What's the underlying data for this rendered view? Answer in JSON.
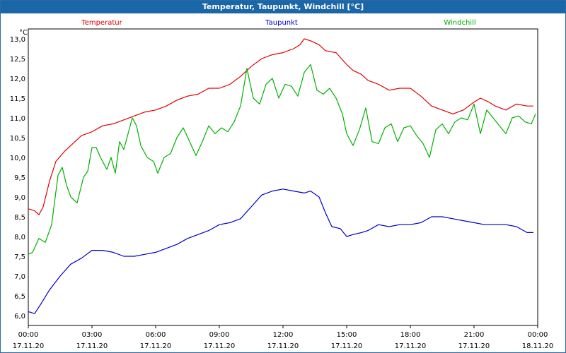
{
  "window": {
    "title": "Temperatur, Taupunkt, Windchill [°C]"
  },
  "colors": {
    "titlebar": "#1b66a6",
    "grid": "#000000",
    "temperature": "#e00000",
    "dewpoint": "#0000cc",
    "windchill": "#00b000"
  },
  "chart_data": {
    "type": "line",
    "title": "Temperatur, Taupunkt, Windchill [°C]",
    "ylabel": "°C",
    "xlabel": "",
    "ylim": [
      5.75,
      13.25
    ],
    "xlim": [
      0,
      24
    ],
    "grid": true,
    "legend": "top",
    "y_ticks": [
      "6,0",
      "6,5",
      "7,0",
      "7,5",
      "8,0",
      "8,5",
      "9,0",
      "9,5",
      "10,0",
      "10,5",
      "11,0",
      "11,5",
      "12,0",
      "12,5",
      "13,0"
    ],
    "x_ticks": [
      {
        "time": "00:00",
        "date": "17.11.20"
      },
      {
        "time": "03:00",
        "date": "17.11.20"
      },
      {
        "time": "06:00",
        "date": "17.11.20"
      },
      {
        "time": "09:00",
        "date": "17.11.20"
      },
      {
        "time": "12:00",
        "date": "17.11.20"
      },
      {
        "time": "15:00",
        "date": "17.11.20"
      },
      {
        "time": "18:00",
        "date": "17.11.20"
      },
      {
        "time": "21:00",
        "date": "17.11.20"
      },
      {
        "time": "00:00",
        "date": "18.11.20"
      }
    ],
    "series": [
      {
        "name": "Temperatur",
        "color": "#e00000",
        "x": [
          0,
          0.3,
          0.5,
          0.7,
          1.0,
          1.3,
          1.7,
          2.0,
          2.5,
          3.0,
          3.5,
          4.0,
          4.5,
          5.0,
          5.5,
          6.0,
          6.5,
          7.0,
          7.5,
          8.0,
          8.5,
          9.0,
          9.5,
          10.0,
          10.5,
          11.0,
          11.5,
          12.0,
          12.5,
          12.8,
          13.0,
          13.3,
          13.7,
          14.0,
          14.5,
          15.0,
          15.3,
          15.7,
          16.0,
          16.5,
          17.0,
          17.5,
          18.0,
          18.5,
          19.0,
          19.5,
          20.0,
          20.5,
          21.0,
          21.3,
          21.7,
          22.0,
          22.5,
          23.0,
          23.5,
          23.8
        ],
        "values": [
          8.7,
          8.65,
          8.55,
          8.75,
          9.4,
          9.9,
          10.15,
          10.3,
          10.55,
          10.65,
          10.8,
          10.85,
          10.95,
          11.05,
          11.15,
          11.2,
          11.3,
          11.45,
          11.55,
          11.6,
          11.75,
          11.75,
          11.85,
          12.05,
          12.3,
          12.5,
          12.6,
          12.65,
          12.75,
          12.85,
          13.0,
          12.95,
          12.85,
          12.7,
          12.65,
          12.35,
          12.2,
          12.1,
          11.95,
          11.85,
          11.7,
          11.75,
          11.75,
          11.55,
          11.3,
          11.2,
          11.1,
          11.2,
          11.4,
          11.5,
          11.4,
          11.3,
          11.2,
          11.35,
          11.3,
          11.3
        ]
      },
      {
        "name": "Taupunkt",
        "color": "#0000cc",
        "x": [
          0,
          0.3,
          0.6,
          1.0,
          1.5,
          2.0,
          2.5,
          3.0,
          3.5,
          4.0,
          4.5,
          5.0,
          5.5,
          6.0,
          6.5,
          7.0,
          7.5,
          8.0,
          8.5,
          9.0,
          9.5,
          10.0,
          10.5,
          11.0,
          11.5,
          12.0,
          12.5,
          13.0,
          13.3,
          13.7,
          14.0,
          14.3,
          14.7,
          15.0,
          15.3,
          15.7,
          16.0,
          16.5,
          17.0,
          17.5,
          18.0,
          18.5,
          19.0,
          19.5,
          20.0,
          20.5,
          21.0,
          21.5,
          22.0,
          22.5,
          23.0,
          23.5,
          23.8
        ],
        "values": [
          6.1,
          6.05,
          6.3,
          6.65,
          7.0,
          7.3,
          7.45,
          7.65,
          7.65,
          7.6,
          7.5,
          7.5,
          7.55,
          7.6,
          7.7,
          7.8,
          7.95,
          8.05,
          8.15,
          8.3,
          8.35,
          8.45,
          8.75,
          9.05,
          9.15,
          9.2,
          9.15,
          9.1,
          9.15,
          9.0,
          8.6,
          8.25,
          8.2,
          8.0,
          8.05,
          8.1,
          8.15,
          8.3,
          8.25,
          8.3,
          8.3,
          8.35,
          8.5,
          8.5,
          8.45,
          8.4,
          8.35,
          8.3,
          8.3,
          8.3,
          8.25,
          8.1,
          8.1
        ]
      },
      {
        "name": "Windchill",
        "color": "#00b000",
        "x": [
          0,
          0.2,
          0.5,
          0.8,
          1.1,
          1.4,
          1.6,
          1.8,
          2.0,
          2.3,
          2.6,
          2.8,
          3.0,
          3.2,
          3.4,
          3.7,
          3.9,
          4.1,
          4.3,
          4.5,
          4.7,
          4.9,
          5.1,
          5.3,
          5.6,
          5.9,
          6.1,
          6.4,
          6.7,
          7.0,
          7.3,
          7.6,
          7.9,
          8.2,
          8.5,
          8.8,
          9.1,
          9.4,
          9.7,
          10.0,
          10.3,
          10.6,
          10.9,
          11.2,
          11.5,
          11.8,
          12.1,
          12.4,
          12.7,
          13.0,
          13.3,
          13.6,
          13.9,
          14.2,
          14.5,
          14.8,
          15.0,
          15.3,
          15.6,
          15.9,
          16.2,
          16.5,
          16.8,
          17.1,
          17.4,
          17.7,
          18.0,
          18.3,
          18.6,
          18.9,
          19.2,
          19.5,
          19.8,
          20.1,
          20.4,
          20.7,
          21.0,
          21.3,
          21.6,
          21.9,
          22.2,
          22.5,
          22.8,
          23.1,
          23.4,
          23.7,
          23.9
        ],
        "values": [
          7.55,
          7.6,
          7.95,
          7.85,
          8.3,
          9.55,
          9.75,
          9.3,
          9.0,
          8.85,
          9.5,
          9.65,
          10.25,
          10.25,
          10.0,
          9.7,
          10.0,
          9.6,
          10.4,
          10.2,
          10.6,
          11.0,
          10.8,
          10.3,
          10.0,
          9.9,
          9.6,
          10.0,
          10.1,
          10.5,
          10.75,
          10.4,
          10.05,
          10.4,
          10.8,
          10.6,
          10.75,
          10.65,
          10.9,
          11.3,
          12.25,
          11.5,
          11.35,
          11.85,
          12.0,
          11.5,
          11.85,
          11.8,
          11.55,
          12.15,
          12.35,
          11.7,
          11.6,
          11.75,
          11.5,
          11.1,
          10.6,
          10.3,
          10.7,
          11.25,
          10.4,
          10.35,
          10.75,
          10.85,
          10.4,
          10.75,
          10.8,
          10.55,
          10.35,
          10.0,
          10.7,
          10.85,
          10.6,
          10.9,
          11.0,
          10.95,
          11.35,
          10.6,
          11.2,
          11.0,
          10.8,
          10.6,
          11.0,
          11.05,
          10.9,
          10.85,
          11.1
        ]
      }
    ]
  }
}
